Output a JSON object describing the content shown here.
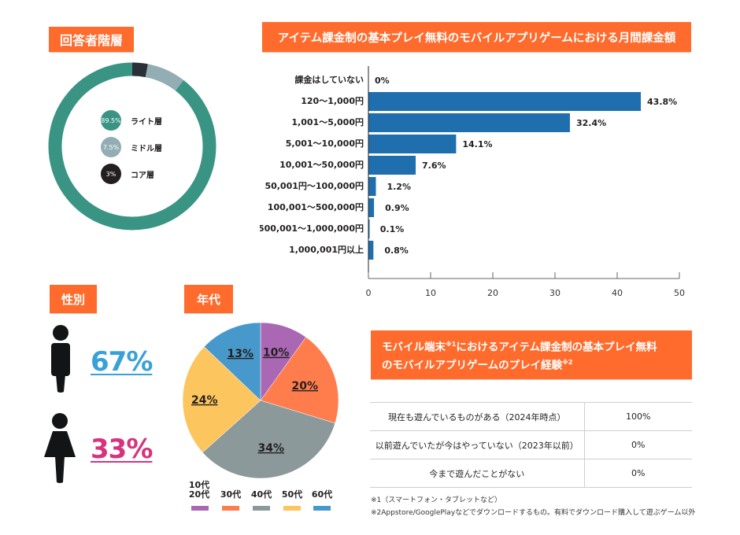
{
  "tier": {
    "title": "回答者階層",
    "legend": [
      {
        "pct": "89.5%",
        "label": "ライト層",
        "color": "#3a9484"
      },
      {
        "pct": "7.5%",
        "label": "ミドル層",
        "color": "#92adb4"
      },
      {
        "pct": "3%",
        "label": "コア層",
        "color": "#231f20"
      }
    ]
  },
  "spend": {
    "title": "アイテム課金制の基本プレイ無料のモバイルアプリゲームにおける月間課金額"
  },
  "gender": {
    "title": "性別",
    "male_pct": "67%",
    "female_pct": "33%",
    "male_color": "#3aa1d8",
    "female_color": "#d6337f"
  },
  "age": {
    "title": "年代"
  },
  "experience": {
    "title_line1": "モバイル端末",
    "title_sup1": "※1",
    "title_line1b": "におけるアイテム課金制の基本プレイ無料",
    "title_line2": "のモバイルアプリゲームのプレイ経験",
    "title_sup2": "※2",
    "rows": [
      {
        "label": "現在も遊んでいるものがある（2024年時点）",
        "value": "100%"
      },
      {
        "label": "以前遊んでいたが今はやっていない（2023年以前）",
        "value": "0%"
      },
      {
        "label": "今まで遊んだことがない",
        "value": "0%"
      }
    ]
  },
  "notes": {
    "note1": "※1（スマートフォン・タブレットなど）",
    "note2": "※2Appstore/GooglePlayなどでダウンロードするもの。有料でダウンロード購入して遊ぶゲーム以外"
  },
  "chart_data": [
    {
      "type": "pie",
      "variant": "donut",
      "title": "回答者階層",
      "categories": [
        "ライト層",
        "ミドル層",
        "コア層"
      ],
      "values": [
        89.5,
        7.5,
        3
      ],
      "colors": [
        "#3a9484",
        "#92adb4",
        "#2b2f37"
      ]
    },
    {
      "type": "bar",
      "orientation": "horizontal",
      "title": "アイテム課金制の基本プレイ無料のモバイルアプリゲームにおける月間課金額",
      "categories": [
        "課金はしていない",
        "120〜1,000円",
        "1,001〜5,000円",
        "5,001〜10,000円",
        "10,001〜50,000円",
        "50,001円〜100,000円",
        "100,001〜500,000円",
        "500,001〜1,000,000円",
        "1,000,001円以上"
      ],
      "values": [
        0,
        43.8,
        32.4,
        14.1,
        7.6,
        1.2,
        0.9,
        0.1,
        0.8
      ],
      "value_labels": [
        "0%",
        "43.8%",
        "32.4%",
        "14.1%",
        "7.6%",
        "1.2%",
        "0.9%",
        "0.1%",
        "0.8%"
      ],
      "xlim": [
        0,
        50
      ],
      "xticks": [
        "0",
        "10",
        "20",
        "30",
        "40",
        "50"
      ],
      "xlabel": "",
      "ylabel": "",
      "bar_color": "#1f6fae",
      "grid": false
    },
    {
      "type": "pie",
      "title": "年代",
      "categories": [
        "10代 20代",
        "30代",
        "40代",
        "50代",
        "60代"
      ],
      "values": [
        10,
        20,
        34,
        24,
        13
      ],
      "value_labels": [
        "10%",
        "20%",
        "34%",
        "24%",
        "13%"
      ],
      "colors": [
        "#aa68b4",
        "#ff7d4c",
        "#8c999b",
        "#fdc55d",
        "#4899cb"
      ],
      "legend_position": "bottom"
    }
  ]
}
